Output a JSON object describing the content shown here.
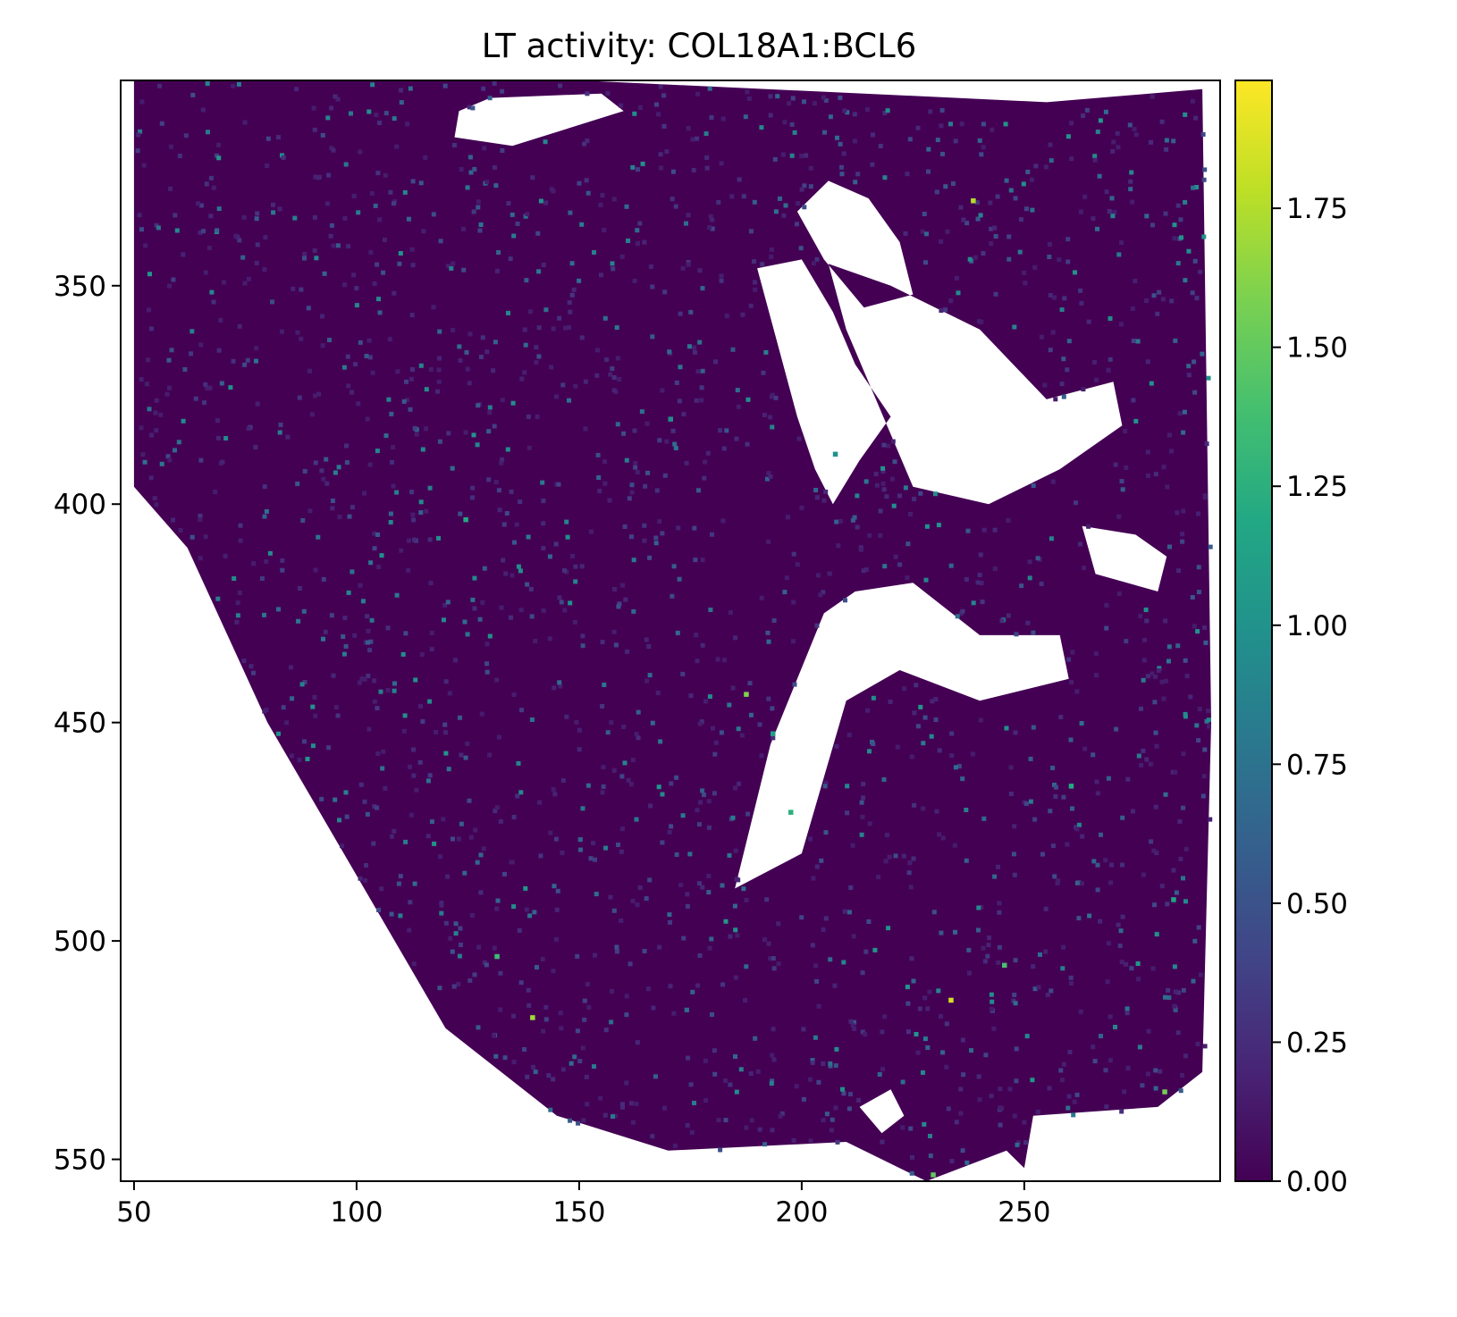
{
  "chart_data": {
    "type": "heatmap",
    "title": "LT activity: COL18A1:BCL6",
    "xlabel": "",
    "ylabel": "",
    "xlim": [
      47,
      294
    ],
    "ylim": [
      555,
      303
    ],
    "y_inverted": true,
    "xticks": [
      50,
      100,
      150,
      200,
      250
    ],
    "yticks": [
      350,
      400,
      450,
      500,
      550
    ],
    "colorbar": {
      "colormap": "viridis",
      "vmin": 0.0,
      "vmax": 1.98,
      "ticks": [
        0.0,
        0.25,
        0.5,
        0.75,
        1.0,
        1.25,
        1.5,
        1.75
      ],
      "tick_labels": [
        "0.00",
        "0.25",
        "0.50",
        "0.75",
        "1.00",
        "1.25",
        "1.50",
        "1.75"
      ]
    },
    "background_value": 0.0,
    "tissue_outline": [
      [
        50,
        303
      ],
      [
        150,
        303
      ],
      [
        235,
        307
      ],
      [
        255,
        308
      ],
      [
        290,
        305
      ],
      [
        292,
        450
      ],
      [
        290,
        530
      ],
      [
        280,
        538
      ],
      [
        252,
        540
      ],
      [
        250,
        552
      ],
      [
        246,
        548
      ],
      [
        228,
        555
      ],
      [
        210,
        546
      ],
      [
        170,
        548
      ],
      [
        145,
        540
      ],
      [
        120,
        520
      ],
      [
        100,
        485
      ],
      [
        80,
        450
      ],
      [
        62,
        410
      ],
      [
        50,
        396
      ]
    ],
    "holes": [
      [
        [
          123,
          310
        ],
        [
          130,
          307
        ],
        [
          155,
          306
        ],
        [
          160,
          310
        ],
        [
          135,
          318
        ],
        [
          122,
          316
        ]
      ],
      [
        [
          190,
          346
        ],
        [
          200,
          344
        ],
        [
          207,
          356
        ],
        [
          212,
          368
        ],
        [
          220,
          380
        ],
        [
          213,
          390
        ],
        [
          207,
          400
        ],
        [
          203,
          392
        ],
        [
          199,
          380
        ]
      ],
      [
        [
          206,
          345
        ],
        [
          220,
          350
        ],
        [
          240,
          360
        ],
        [
          255,
          376
        ],
        [
          270,
          372
        ],
        [
          272,
          382
        ],
        [
          258,
          392
        ],
        [
          242,
          400
        ],
        [
          225,
          396
        ],
        [
          210,
          360
        ]
      ],
      [
        [
          199,
          333
        ],
        [
          206,
          326
        ],
        [
          215,
          330
        ],
        [
          222,
          340
        ],
        [
          225,
          352
        ],
        [
          214,
          355
        ],
        [
          205,
          344
        ]
      ],
      [
        [
          212,
          420
        ],
        [
          225,
          418
        ],
        [
          240,
          430
        ],
        [
          258,
          430
        ],
        [
          260,
          440
        ],
        [
          240,
          445
        ],
        [
          222,
          438
        ],
        [
          210,
          445
        ],
        [
          200,
          480
        ],
        [
          185,
          488
        ],
        [
          193,
          455
        ],
        [
          205,
          425
        ]
      ],
      [
        [
          263,
          405
        ],
        [
          275,
          407
        ],
        [
          282,
          412
        ],
        [
          280,
          420
        ],
        [
          266,
          416
        ]
      ],
      [
        [
          213,
          538
        ],
        [
          220,
          534
        ],
        [
          223,
          540
        ],
        [
          218,
          544
        ]
      ]
    ],
    "hotspots": [
      {
        "x": 124,
        "y": 403,
        "value": 1.2
      },
      {
        "x": 131,
        "y": 503,
        "value": 1.35
      },
      {
        "x": 139,
        "y": 517,
        "value": 1.7
      },
      {
        "x": 187,
        "y": 443,
        "value": 1.6
      },
      {
        "x": 193,
        "y": 452,
        "value": 1.1
      },
      {
        "x": 233,
        "y": 513,
        "value": 1.85
      },
      {
        "x": 238,
        "y": 330,
        "value": 1.75
      },
      {
        "x": 260,
        "y": 464,
        "value": 1.2
      },
      {
        "x": 281,
        "y": 534,
        "value": 1.55
      },
      {
        "x": 283,
        "y": 490,
        "value": 1.15
      },
      {
        "x": 229,
        "y": 553,
        "value": 1.5
      },
      {
        "x": 197,
        "y": 470,
        "value": 1.25
      },
      {
        "x": 207,
        "y": 388,
        "value": 1.0
      },
      {
        "x": 170,
        "y": 380,
        "value": 0.95
      },
      {
        "x": 245,
        "y": 505,
        "value": 1.4
      }
    ]
  }
}
